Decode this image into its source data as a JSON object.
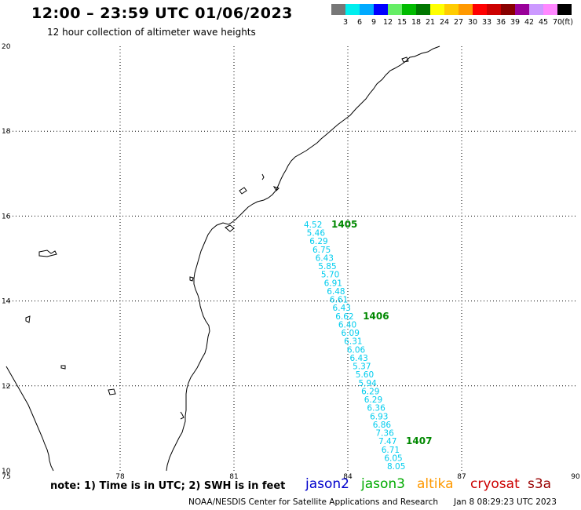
{
  "header": {
    "title": "12:00 – 23:59 UTC 01/06/2023",
    "subtitle": "12 hour collection of altimeter wave heights"
  },
  "legend": {
    "unit": "(ft)",
    "bins": [
      {
        "label": "3",
        "color": "#777777"
      },
      {
        "label": "6",
        "color": "#00eeee"
      },
      {
        "label": "9",
        "color": "#00aaff"
      },
      {
        "label": "12",
        "color": "#0000ff"
      },
      {
        "label": "15",
        "color": "#66ee66"
      },
      {
        "label": "18",
        "color": "#00bb00"
      },
      {
        "label": "21",
        "color": "#007700"
      },
      {
        "label": "24",
        "color": "#ffff00"
      },
      {
        "label": "27",
        "color": "#ffcc00"
      },
      {
        "label": "30",
        "color": "#ff9900"
      },
      {
        "label": "33",
        "color": "#ff0000"
      },
      {
        "label": "36",
        "color": "#cc0000"
      },
      {
        "label": "39",
        "color": "#880000"
      },
      {
        "label": "42",
        "color": "#990099"
      },
      {
        "label": "45",
        "color": "#cc99ff"
      },
      {
        "label": "70",
        "color": "#ff88ff"
      },
      {
        "label": "",
        "color": "#000000"
      }
    ]
  },
  "map": {
    "lon_range": [
      75,
      90
    ],
    "lat_range": [
      10,
      20
    ],
    "x_ticks": [
      "75",
      "78",
      "81",
      "84",
      "87",
      "90"
    ],
    "y_ticks": [
      "10",
      "12",
      "14",
      "16",
      "18",
      "20"
    ]
  },
  "track": {
    "color": "#00ccee",
    "values": [
      "4.52",
      "5.46",
      "6.29",
      "6.75",
      "6.43",
      "5.85",
      "5.70",
      "6.91",
      "6.48",
      "6.61",
      "6.43",
      "6.62",
      "6.40",
      "6.09",
      "6.31",
      "6.06",
      "6.43",
      "5.37",
      "5.60",
      "5.94",
      "6.29",
      "6.29",
      "6.36",
      "6.93",
      "6.86",
      "7.36",
      "7.47",
      "6.71",
      "6.05",
      "8.05"
    ],
    "time_labels": [
      {
        "text": "1405",
        "after_index": 0
      },
      {
        "text": "1406",
        "after_index": 11
      },
      {
        "text": "1407",
        "after_index": 26
      }
    ],
    "time_color": "#008800"
  },
  "footer": {
    "note": "note:  1) Time is in UTC;  2) SWH is in feet",
    "satellites": [
      "jason2",
      "jason3",
      "altika",
      "cryosat",
      "s3a"
    ],
    "org": "NOAA/NESDIS Center for Satellite Applications and Research",
    "timestamp": "Jan  8 08:29:23 UTC 2023"
  }
}
